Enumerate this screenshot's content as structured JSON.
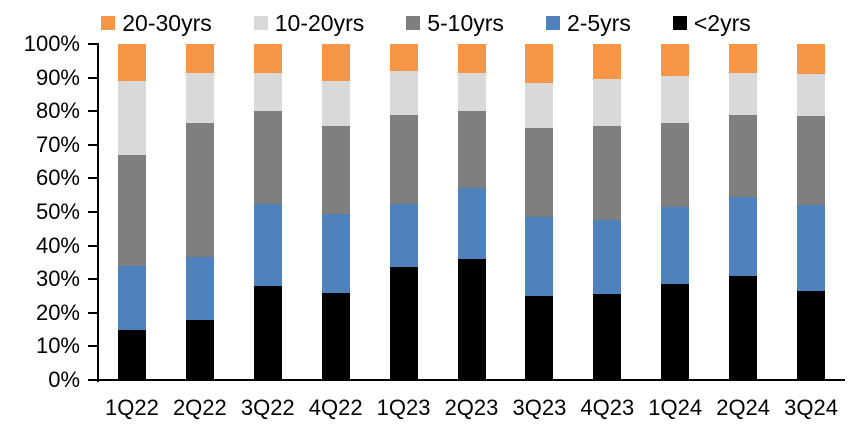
{
  "chart_data": {
    "type": "bar",
    "subtype": "stacked-100-percent-column",
    "title": "",
    "xlabel": "",
    "ylabel": "",
    "ylim": [
      0,
      100
    ],
    "y_tick_step": 10,
    "y_ticks": [
      "0%",
      "10%",
      "20%",
      "30%",
      "40%",
      "50%",
      "60%",
      "70%",
      "80%",
      "90%",
      "100%"
    ],
    "grid": false,
    "legend_position": "top",
    "legend_order": [
      "20-30yrs",
      "10-20yrs",
      "5-10yrs",
      "2-5yrs",
      "<2yrs"
    ],
    "categories": [
      "1Q22",
      "2Q22",
      "3Q22",
      "4Q22",
      "1Q23",
      "2Q23",
      "3Q23",
      "4Q23",
      "1Q24",
      "2Q24",
      "3Q24"
    ],
    "stack_order_note": "first series stacked at bottom",
    "series": [
      {
        "name": "<2yrs",
        "color": "#000000",
        "values": [
          15,
          18,
          28,
          26,
          33.5,
          36,
          25,
          25.5,
          28.5,
          31,
          26.5
        ]
      },
      {
        "name": "2-5yrs",
        "color": "#4F81BD",
        "values": [
          19,
          18.5,
          24.5,
          23.5,
          19,
          21,
          23.5,
          22,
          23,
          23.5,
          25.5
        ]
      },
      {
        "name": "5-10yrs",
        "color": "#7F7F7F",
        "values": [
          33,
          40,
          27.5,
          26,
          26.5,
          23,
          26.5,
          28,
          25,
          24.5,
          26.5
        ]
      },
      {
        "name": "10-20yrs",
        "color": "#D9D9D9",
        "values": [
          22,
          15,
          11.5,
          13.5,
          13,
          11.5,
          13.5,
          14,
          14,
          12.5,
          12.5
        ]
      },
      {
        "name": "20-30yrs",
        "color": "#F79646",
        "values": [
          11,
          8.5,
          8.5,
          11,
          8,
          8.5,
          11.5,
          10.5,
          9.5,
          8.5,
          9
        ]
      }
    ],
    "colors": {
      "axis": "#000000",
      "text": "#000000",
      "background": "#FFFFFF"
    }
  }
}
